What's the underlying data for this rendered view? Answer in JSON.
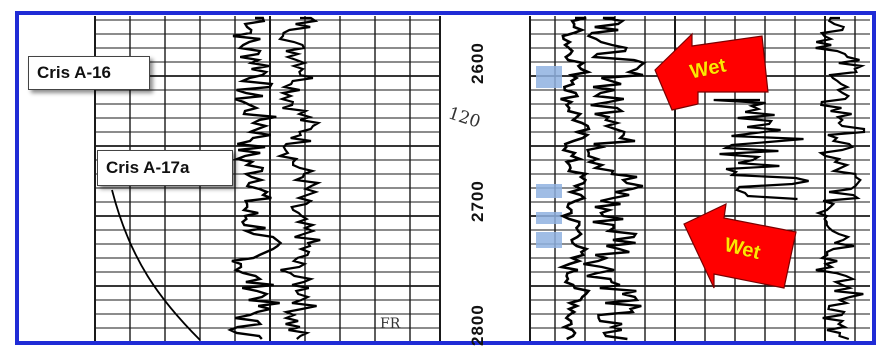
{
  "well_labels": {
    "upper": "Cris A-16",
    "lower": "Cris A-17a"
  },
  "depth_marks": [
    "2600",
    "2700",
    "2800"
  ],
  "annotations": {
    "wet_top": "Wet",
    "wet_bottom": "Wet",
    "handwritten_mid": "120",
    "handwritten_base": "FR"
  },
  "colors": {
    "frame_border": "#1f2bd6",
    "arrow_fill": "#ff0000",
    "arrow_text": "#ffe600",
    "highlight": "#8fb2e0",
    "grid": "#1a1a1a",
    "log_curve": "#000000"
  },
  "icons": [
    "wet-zone-arrow",
    "highlight-band"
  ]
}
